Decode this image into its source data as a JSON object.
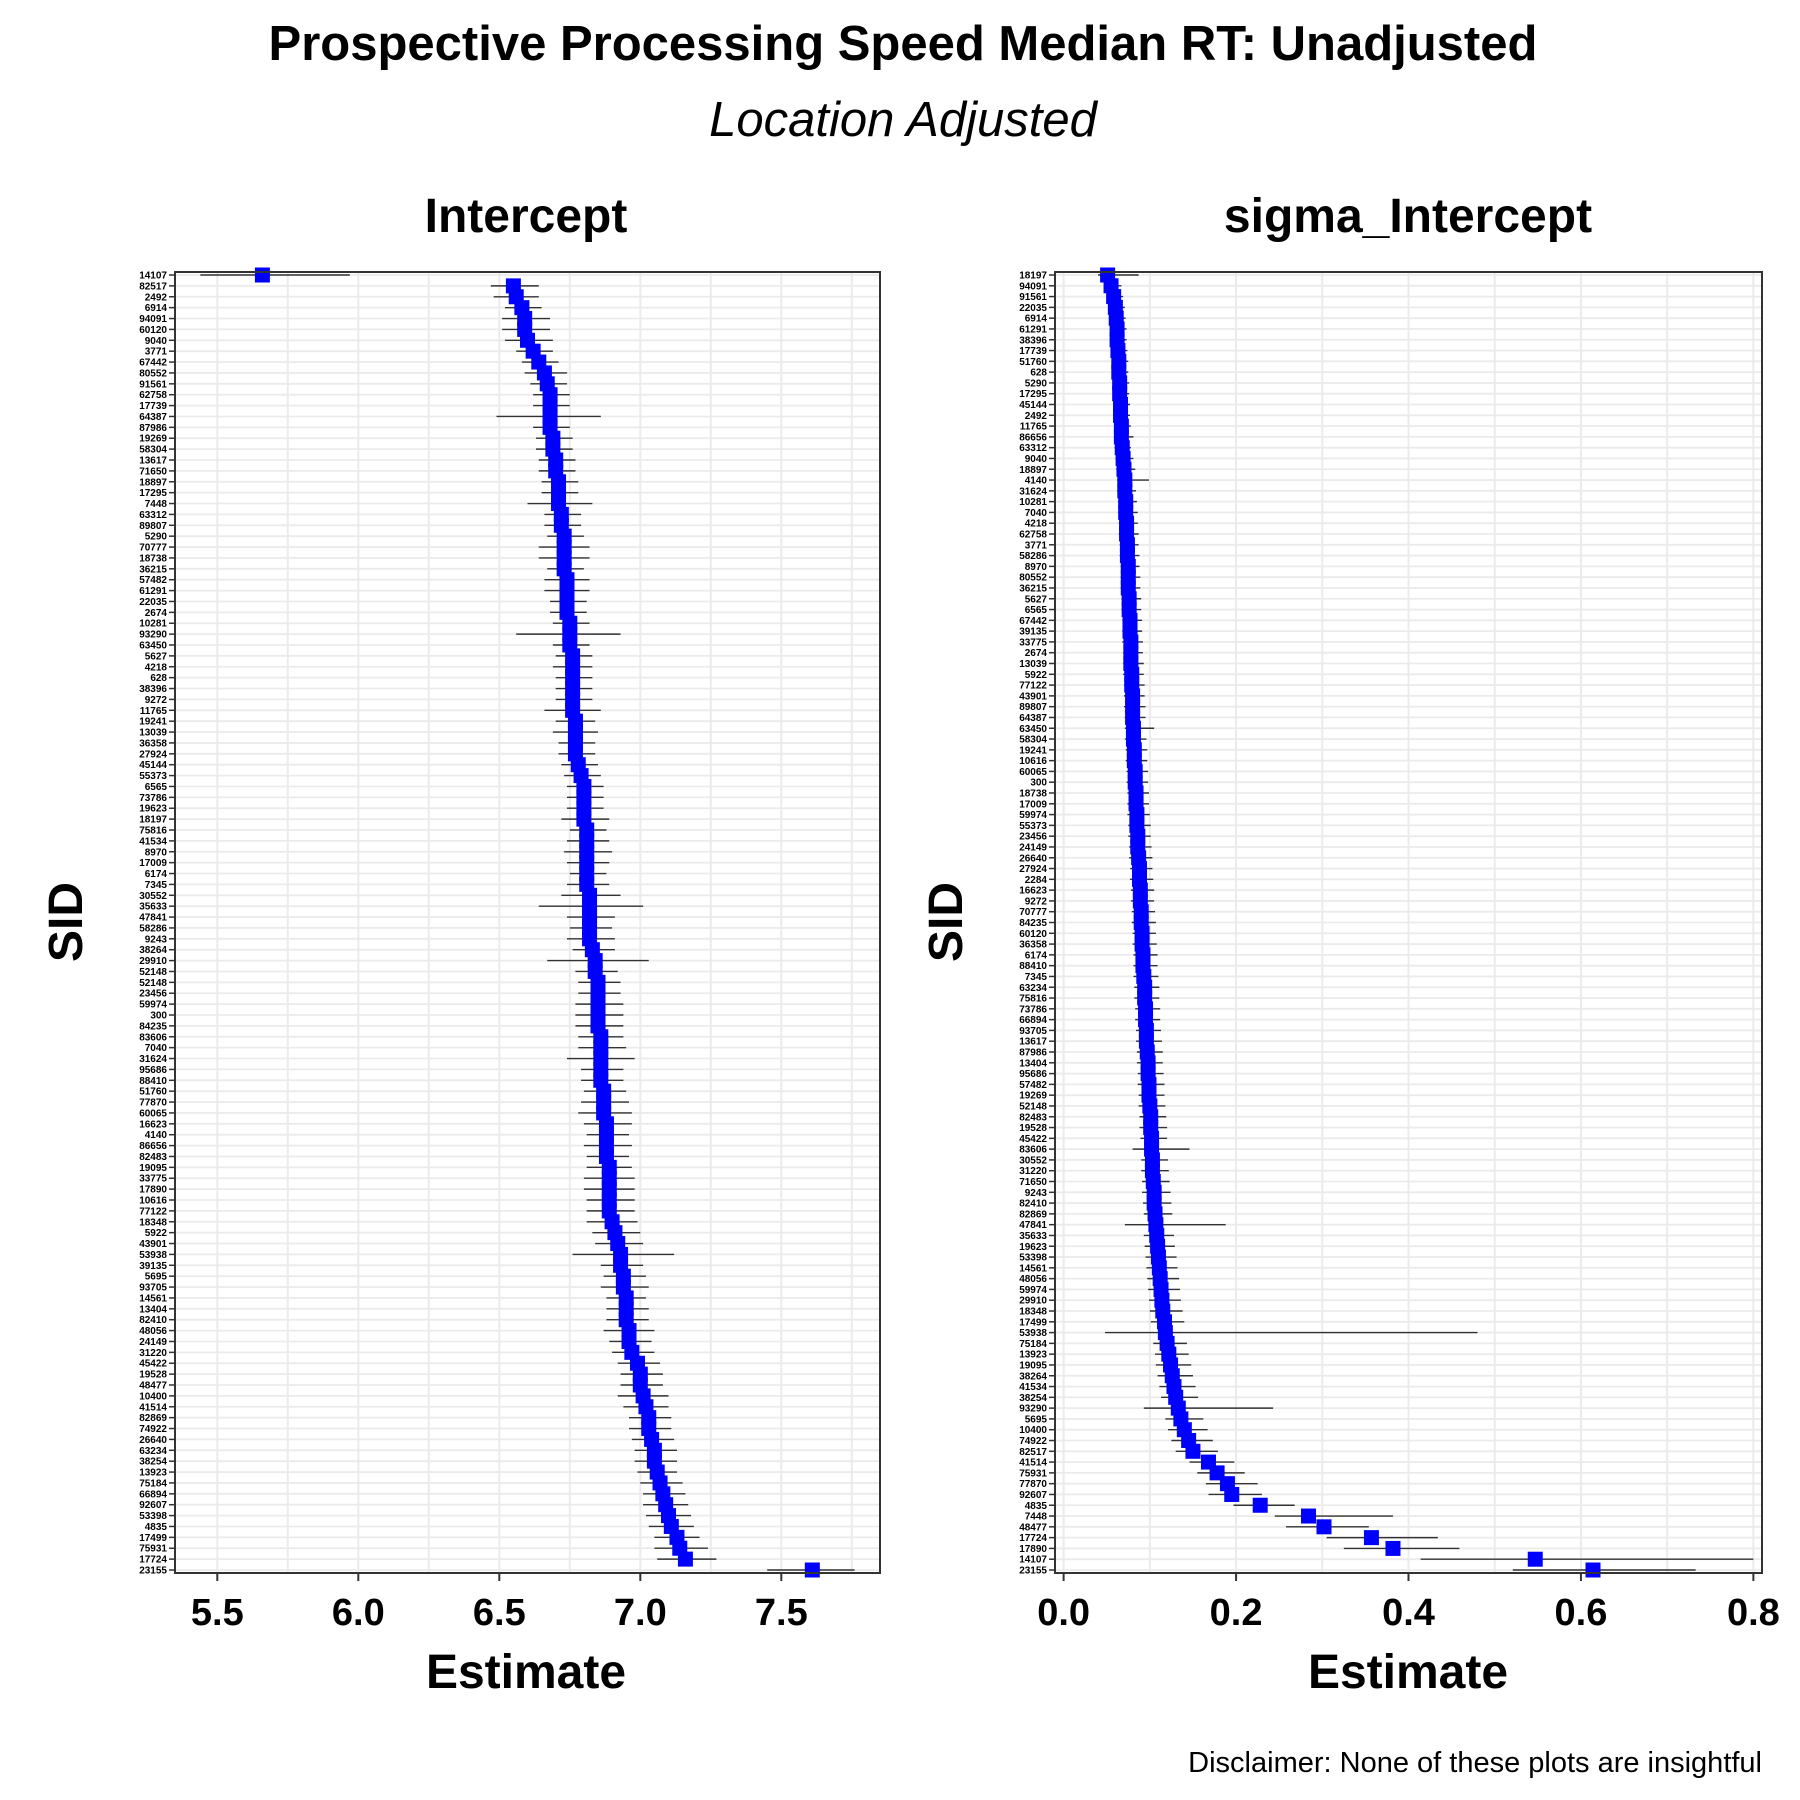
{
  "title": "Prospective Processing Speed Median RT: Unadjusted",
  "subtitle": "Location Adjusted",
  "caption": "Disclaimer: None of these plots are insightful",
  "colors": {
    "point": "#0000FF",
    "errorbar": "#333333",
    "grid": "#EBEBEB",
    "panel_border": "#333333"
  },
  "chart_data": [
    {
      "type": "scatter",
      "title": "Intercept",
      "xlabel": "Estimate",
      "ylabel": "SID",
      "xlim": [
        5.35,
        7.85
      ],
      "xticks": [
        5.5,
        6.0,
        6.5,
        7.0,
        7.5
      ],
      "xtick_labels": [
        "5.5",
        "6.0",
        "6.5",
        "7.0",
        "7.5"
      ],
      "grid": true,
      "categories": [
        "14107",
        "82517",
        "2492",
        "6914",
        "94091",
        "60120",
        "9040",
        "3771",
        "67442",
        "80552",
        "91561",
        "62758",
        "17739",
        "64387",
        "87986",
        "19269",
        "58304",
        "13617",
        "71650",
        "18897",
        "17295",
        "7448",
        "63312",
        "89807",
        "5290",
        "70777",
        "18738",
        "36215",
        "57482",
        "61291",
        "22035",
        "2674",
        "10281",
        "93290",
        "63450",
        "5627",
        "4218",
        "628",
        "38396",
        "9272",
        "11765",
        "19241",
        "13039",
        "36358",
        "27924",
        "45144",
        "55373",
        "6565",
        "73786",
        "19623",
        "18197",
        "75816",
        "41534",
        "8970",
        "17009",
        "6174",
        "7345",
        "30552",
        "35633",
        "47841",
        "58286",
        "9243",
        "38264",
        "29910",
        "52148",
        "52148",
        "23456",
        "59974",
        "300",
        "84235",
        "83606",
        "7040",
        "31624",
        "95686",
        "88410",
        "51760",
        "77870",
        "60065",
        "16623",
        "4140",
        "86656",
        "82483",
        "19095",
        "33775",
        "17890",
        "10616",
        "77122",
        "18348",
        "5922",
        "43901",
        "53938",
        "39135",
        "5695",
        "93705",
        "14561",
        "13404",
        "82410",
        "48056",
        "24149",
        "31220",
        "45422",
        "19528",
        "48477",
        "10400",
        "41514",
        "82869",
        "74922",
        "26640",
        "63234",
        "38254",
        "13923",
        "75184",
        "66894",
        "92607",
        "53398",
        "4835",
        "17499",
        "75931",
        "17724",
        "23155"
      ],
      "values": [
        5.66,
        6.55,
        6.56,
        6.58,
        6.59,
        6.59,
        6.6,
        6.62,
        6.64,
        6.66,
        6.67,
        6.68,
        6.68,
        6.68,
        6.68,
        6.69,
        6.69,
        6.7,
        6.7,
        6.71,
        6.71,
        6.71,
        6.72,
        6.72,
        6.73,
        6.73,
        6.73,
        6.73,
        6.74,
        6.74,
        6.74,
        6.74,
        6.75,
        6.75,
        6.75,
        6.76,
        6.76,
        6.76,
        6.76,
        6.76,
        6.76,
        6.77,
        6.77,
        6.77,
        6.77,
        6.78,
        6.79,
        6.8,
        6.8,
        6.8,
        6.8,
        6.81,
        6.81,
        6.81,
        6.81,
        6.81,
        6.81,
        6.82,
        6.82,
        6.82,
        6.82,
        6.82,
        6.83,
        6.84,
        6.84,
        6.85,
        6.85,
        6.85,
        6.85,
        6.85,
        6.86,
        6.86,
        6.86,
        6.86,
        6.86,
        6.87,
        6.87,
        6.87,
        6.88,
        6.88,
        6.88,
        6.88,
        6.89,
        6.89,
        6.89,
        6.89,
        6.89,
        6.9,
        6.91,
        6.92,
        6.93,
        6.93,
        6.94,
        6.94,
        6.95,
        6.95,
        6.95,
        6.96,
        6.96,
        6.97,
        6.99,
        7.0,
        7.0,
        7.01,
        7.02,
        7.03,
        7.03,
        7.04,
        7.05,
        7.05,
        7.06,
        7.07,
        7.08,
        7.09,
        7.1,
        7.11,
        7.13,
        7.14,
        7.16,
        7.61
      ],
      "err_low": [
        5.44,
        6.47,
        6.48,
        6.52,
        6.51,
        6.51,
        6.52,
        6.56,
        6.58,
        6.59,
        6.61,
        6.62,
        6.62,
        6.49,
        6.62,
        6.63,
        6.63,
        6.64,
        6.64,
        6.65,
        6.65,
        6.6,
        6.66,
        6.66,
        6.67,
        6.64,
        6.64,
        6.67,
        6.66,
        6.66,
        6.68,
        6.68,
        6.69,
        6.56,
        6.69,
        6.7,
        6.69,
        6.7,
        6.7,
        6.7,
        6.66,
        6.7,
        6.69,
        6.71,
        6.71,
        6.72,
        6.73,
        6.74,
        6.74,
        6.74,
        6.72,
        6.75,
        6.74,
        6.73,
        6.74,
        6.75,
        6.74,
        6.72,
        6.64,
        6.74,
        6.75,
        6.74,
        6.76,
        6.67,
        6.77,
        6.78,
        6.78,
        6.77,
        6.77,
        6.77,
        6.78,
        6.78,
        6.74,
        6.79,
        6.79,
        6.8,
        6.79,
        6.78,
        6.8,
        6.81,
        6.8,
        6.81,
        6.81,
        6.8,
        6.8,
        6.81,
        6.81,
        6.81,
        6.83,
        6.84,
        6.76,
        6.86,
        6.87,
        6.86,
        6.88,
        6.88,
        6.88,
        6.87,
        6.89,
        6.9,
        6.92,
        6.93,
        6.93,
        6.92,
        6.94,
        6.96,
        6.96,
        6.97,
        6.98,
        6.98,
        6.99,
        7.0,
        7.01,
        7.01,
        7.02,
        7.03,
        7.05,
        7.05,
        7.06,
        7.45
      ],
      "err_high": [
        5.97,
        6.64,
        6.64,
        6.65,
        6.68,
        6.68,
        6.69,
        6.69,
        6.71,
        6.74,
        6.74,
        6.75,
        6.75,
        6.86,
        6.75,
        6.76,
        6.76,
        6.77,
        6.77,
        6.78,
        6.78,
        6.83,
        6.79,
        6.79,
        6.8,
        6.82,
        6.82,
        6.8,
        6.82,
        6.82,
        6.81,
        6.81,
        6.82,
        6.93,
        6.82,
        6.83,
        6.83,
        6.83,
        6.83,
        6.83,
        6.86,
        6.84,
        6.85,
        6.84,
        6.84,
        6.85,
        6.86,
        6.87,
        6.87,
        6.87,
        6.89,
        6.88,
        6.89,
        6.9,
        6.89,
        6.88,
        6.89,
        6.93,
        7.01,
        6.91,
        6.9,
        6.91,
        6.91,
        7.03,
        6.92,
        6.93,
        6.93,
        6.94,
        6.94,
        6.94,
        6.94,
        6.95,
        6.98,
        6.94,
        6.94,
        6.95,
        6.96,
        6.97,
        6.97,
        6.96,
        6.97,
        6.96,
        6.97,
        6.98,
        6.98,
        6.98,
        6.98,
        6.99,
        7.0,
        7.01,
        7.12,
        7.01,
        7.02,
        7.03,
        7.02,
        7.03,
        7.03,
        7.05,
        7.04,
        7.05,
        7.07,
        7.08,
        7.08,
        7.1,
        7.1,
        7.11,
        7.11,
        7.12,
        7.13,
        7.13,
        7.13,
        7.15,
        7.16,
        7.17,
        7.18,
        7.19,
        7.21,
        7.24,
        7.27,
        7.76
      ]
    },
    {
      "type": "scatter",
      "title": "sigma_Intercept",
      "xlabel": "Estimate",
      "ylabel": "SID",
      "xlim": [
        -0.01,
        0.81
      ],
      "xticks": [
        0.0,
        0.2,
        0.4,
        0.6,
        0.8
      ],
      "xtick_labels": [
        "0.0",
        "0.2",
        "0.4",
        "0.6",
        "0.8"
      ],
      "grid": true,
      "categories": [
        "18197",
        "94091",
        "91561",
        "22035",
        "6914",
        "61291",
        "38396",
        "17739",
        "51760",
        "628",
        "5290",
        "17295",
        "45144",
        "2492",
        "11765",
        "86656",
        "63312",
        "9040",
        "18897",
        "4140",
        "31624",
        "10281",
        "7040",
        "4218",
        "62758",
        "3771",
        "58286",
        "8970",
        "80552",
        "36215",
        "5627",
        "6565",
        "67442",
        "39135",
        "33775",
        "2674",
        "13039",
        "5922",
        "77122",
        "43901",
        "89807",
        "64387",
        "63450",
        "58304",
        "19241",
        "10616",
        "60065",
        "300",
        "18738",
        "17009",
        "59974",
        "55373",
        "23456",
        "24149",
        "26640",
        "27924",
        "2284",
        "16623",
        "9272",
        "70777",
        "84235",
        "60120",
        "36358",
        "6174",
        "88410",
        "7345",
        "63234",
        "75816",
        "73786",
        "66894",
        "93705",
        "13617",
        "87986",
        "13404",
        "95686",
        "57482",
        "19269",
        "52148",
        "82483",
        "19528",
        "45422",
        "83606",
        "30552",
        "31220",
        "71650",
        "9243",
        "82410",
        "82869",
        "47841",
        "35633",
        "19623",
        "53398",
        "14561",
        "48056",
        "59974",
        "29910",
        "18348",
        "17499",
        "53938",
        "75184",
        "13923",
        "19095",
        "38264",
        "41534",
        "38254",
        "93290",
        "5695",
        "10400",
        "74922",
        "82517",
        "41514",
        "75931",
        "77870",
        "92607",
        "4835",
        "7448",
        "48477",
        "17724",
        "17890",
        "14107",
        "23155"
      ],
      "values": [
        0.051,
        0.055,
        0.058,
        0.06,
        0.061,
        0.062,
        0.062,
        0.063,
        0.064,
        0.064,
        0.065,
        0.065,
        0.066,
        0.066,
        0.067,
        0.067,
        0.068,
        0.069,
        0.07,
        0.071,
        0.071,
        0.072,
        0.072,
        0.073,
        0.073,
        0.074,
        0.074,
        0.075,
        0.075,
        0.075,
        0.076,
        0.076,
        0.077,
        0.077,
        0.078,
        0.078,
        0.078,
        0.079,
        0.079,
        0.08,
        0.08,
        0.08,
        0.081,
        0.081,
        0.082,
        0.082,
        0.083,
        0.083,
        0.084,
        0.084,
        0.085,
        0.085,
        0.086,
        0.086,
        0.087,
        0.088,
        0.088,
        0.089,
        0.089,
        0.09,
        0.09,
        0.091,
        0.091,
        0.092,
        0.092,
        0.093,
        0.094,
        0.094,
        0.095,
        0.095,
        0.096,
        0.096,
        0.097,
        0.098,
        0.098,
        0.099,
        0.099,
        0.1,
        0.101,
        0.101,
        0.102,
        0.102,
        0.103,
        0.103,
        0.104,
        0.105,
        0.105,
        0.106,
        0.107,
        0.108,
        0.109,
        0.11,
        0.111,
        0.112,
        0.113,
        0.114,
        0.115,
        0.117,
        0.118,
        0.12,
        0.122,
        0.124,
        0.126,
        0.128,
        0.13,
        0.133,
        0.136,
        0.14,
        0.145,
        0.15,
        0.168,
        0.178,
        0.19,
        0.195,
        0.228,
        0.284,
        0.302,
        0.357,
        0.382,
        0.547,
        0.614
      ],
      "err_low": [
        0.04,
        0.047,
        0.05,
        0.052,
        0.053,
        0.054,
        0.054,
        0.055,
        0.056,
        0.056,
        0.057,
        0.057,
        0.058,
        0.058,
        0.059,
        0.059,
        0.059,
        0.06,
        0.061,
        0.062,
        0.062,
        0.063,
        0.063,
        0.064,
        0.064,
        0.065,
        0.065,
        0.066,
        0.066,
        0.066,
        0.067,
        0.067,
        0.068,
        0.068,
        0.068,
        0.069,
        0.069,
        0.069,
        0.07,
        0.07,
        0.07,
        0.071,
        0.071,
        0.071,
        0.072,
        0.072,
        0.073,
        0.073,
        0.074,
        0.074,
        0.074,
        0.075,
        0.075,
        0.076,
        0.076,
        0.077,
        0.077,
        0.078,
        0.078,
        0.079,
        0.079,
        0.08,
        0.08,
        0.081,
        0.081,
        0.081,
        0.082,
        0.082,
        0.083,
        0.083,
        0.084,
        0.084,
        0.085,
        0.085,
        0.086,
        0.086,
        0.087,
        0.087,
        0.088,
        0.088,
        0.089,
        0.08,
        0.09,
        0.09,
        0.091,
        0.091,
        0.092,
        0.093,
        0.071,
        0.093,
        0.094,
        0.095,
        0.096,
        0.097,
        0.098,
        0.099,
        0.1,
        0.101,
        0.048,
        0.104,
        0.106,
        0.107,
        0.109,
        0.111,
        0.113,
        0.093,
        0.118,
        0.121,
        0.125,
        0.13,
        0.146,
        0.155,
        0.165,
        0.168,
        0.197,
        0.245,
        0.258,
        0.305,
        0.325,
        0.414,
        0.521
      ],
      "err_high": [
        0.087,
        0.067,
        0.069,
        0.071,
        0.072,
        0.073,
        0.073,
        0.074,
        0.075,
        0.075,
        0.076,
        0.076,
        0.077,
        0.077,
        0.078,
        0.081,
        0.078,
        0.081,
        0.083,
        0.099,
        0.084,
        0.085,
        0.086,
        0.086,
        0.087,
        0.087,
        0.088,
        0.088,
        0.089,
        0.089,
        0.09,
        0.09,
        0.091,
        0.091,
        0.092,
        0.092,
        0.093,
        0.093,
        0.094,
        0.094,
        0.095,
        0.095,
        0.105,
        0.096,
        0.097,
        0.097,
        0.098,
        0.098,
        0.099,
        0.099,
        0.1,
        0.101,
        0.101,
        0.102,
        0.103,
        0.103,
        0.104,
        0.105,
        0.105,
        0.106,
        0.107,
        0.107,
        0.108,
        0.109,
        0.109,
        0.11,
        0.111,
        0.111,
        0.112,
        0.112,
        0.113,
        0.114,
        0.115,
        0.115,
        0.116,
        0.117,
        0.117,
        0.118,
        0.119,
        0.12,
        0.12,
        0.146,
        0.121,
        0.122,
        0.123,
        0.124,
        0.125,
        0.126,
        0.188,
        0.128,
        0.129,
        0.131,
        0.132,
        0.134,
        0.135,
        0.136,
        0.138,
        0.14,
        0.48,
        0.143,
        0.145,
        0.148,
        0.15,
        0.153,
        0.156,
        0.243,
        0.162,
        0.167,
        0.173,
        0.179,
        0.198,
        0.21,
        0.225,
        0.23,
        0.268,
        0.382,
        0.354,
        0.434,
        0.459,
        0.8,
        0.733
      ]
    }
  ]
}
